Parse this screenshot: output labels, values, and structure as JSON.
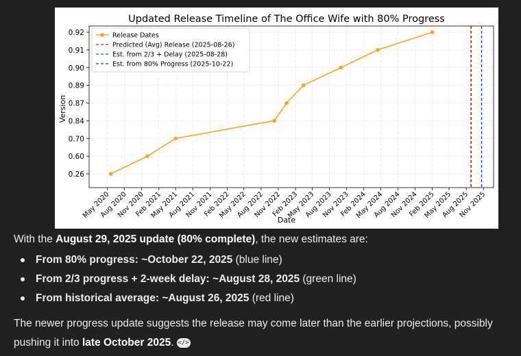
{
  "chart_data": {
    "type": "line",
    "title": "Updated Release Timeline of The Office Wife with 80% Progress",
    "xlabel": "Date",
    "ylabel": "Version",
    "x_ticks": [
      "May 2020",
      "Aug 2020",
      "Nov 2020",
      "Feb 2021",
      "May 2021",
      "Aug 2021",
      "Nov 2021",
      "Feb 2022",
      "May 2022",
      "Aug 2022",
      "Nov 2022",
      "Feb 2023",
      "May 2023",
      "Aug 2023",
      "Nov 2023",
      "Feb 2024",
      "May 2024",
      "Aug 2024",
      "Nov 2024",
      "Feb 2025",
      "May 2025",
      "Aug 2025",
      "Nov 2025"
    ],
    "y_ticks": [
      "0.26",
      "0.60",
      "0.70",
      "0.84",
      "0.87",
      "0.89",
      "0.90",
      "0.91",
      "0.92"
    ],
    "series": [
      {
        "name": "Release Dates",
        "color": "#f5a623",
        "points": [
          {
            "x": "2020-05-20",
            "y": "0.26"
          },
          {
            "x": "2020-12-01",
            "y": "0.60"
          },
          {
            "x": "2021-05-01",
            "y": "0.70"
          },
          {
            "x": "2022-10-10",
            "y": "0.84"
          },
          {
            "x": "2022-12-15",
            "y": "0.87"
          },
          {
            "x": "2023-03-15",
            "y": "0.89"
          },
          {
            "x": "2023-10-01",
            "y": "0.90"
          },
          {
            "x": "2024-04-15",
            "y": "0.91"
          },
          {
            "x": "2025-02-01",
            "y": "0.92"
          }
        ]
      }
    ],
    "vlines": [
      {
        "name": "Predicted (Avg) Release (2025-08-26)",
        "x": "2025-08-26",
        "color": "#e41a1c",
        "style": "dashed"
      },
      {
        "name": "Est. from 2/3 + Delay (2025-08-28)",
        "x": "2025-08-28",
        "color": "#1a7a1a",
        "style": "dashed"
      },
      {
        "name": "Est. from 80% Progress (2025-10-22)",
        "x": "2025-10-22",
        "color": "#1f2fd0",
        "style": "dashed"
      }
    ],
    "grid": true,
    "legend_position": "top-left"
  },
  "text": {
    "intro_prefix": "With the ",
    "intro_bold": "August 29, 2025 update (80% complete)",
    "intro_suffix": ", the new estimates are:",
    "bullets": [
      {
        "bold": "From 80% progress: ~October 22, 2025",
        "rest": " (blue line)"
      },
      {
        "bold": "From 2/3 progress + 2-week delay: ~August 28, 2025",
        "rest": " (green line)"
      },
      {
        "bold": "From historical average: ~August 26, 2025",
        "rest": " (red line)"
      }
    ],
    "conclusion_prefix": "The newer progress update suggests the release may come later than the earlier projections, possibly pushing it into ",
    "conclusion_bold": "late October 2025",
    "conclusion_suffix": ".",
    "code_icon_label": "</>"
  }
}
